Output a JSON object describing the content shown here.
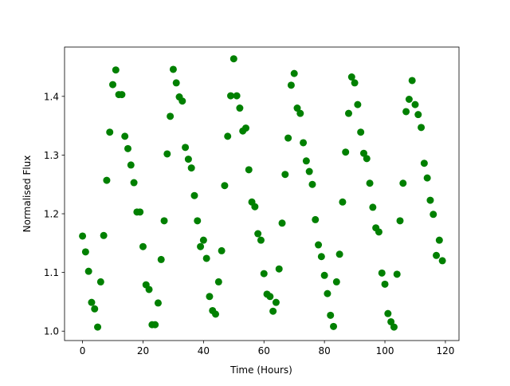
{
  "chart_data": {
    "type": "scatter",
    "xlabel": "Time (Hours)",
    "ylabel": "Normalised Flux",
    "color": "#008000",
    "x": [
      0,
      1,
      2,
      3,
      4,
      5,
      6,
      7,
      8,
      9,
      10,
      11,
      12,
      13,
      14,
      15,
      16,
      17,
      18,
      19,
      20,
      21,
      22,
      23,
      24,
      25,
      26,
      27,
      28,
      29,
      30,
      31,
      32,
      33,
      34,
      35,
      36,
      37,
      38,
      39,
      40,
      41,
      42,
      43,
      44,
      45,
      46,
      47,
      48,
      49,
      50,
      51,
      52,
      53,
      54,
      55,
      56,
      57,
      58,
      59,
      60,
      61,
      62,
      63,
      64,
      65,
      66,
      67,
      68,
      69,
      70,
      71,
      72,
      73,
      74,
      75,
      76,
      77,
      78,
      79,
      80,
      81,
      82,
      83,
      84,
      85,
      86,
      87,
      88,
      89,
      90,
      91,
      92,
      93,
      94,
      95,
      96,
      97,
      98,
      99,
      100,
      101,
      102,
      103,
      104,
      105,
      106,
      107,
      108,
      109,
      110,
      111,
      112,
      113,
      114,
      115,
      116,
      117,
      118,
      119
    ],
    "values": [
      1.162,
      1.135,
      1.102,
      1.049,
      1.038,
      1.007,
      1.084,
      1.163,
      1.257,
      1.339,
      1.42,
      1.445,
      1.403,
      1.403,
      1.332,
      1.311,
      1.283,
      1.253,
      1.203,
      1.203,
      1.144,
      1.079,
      1.071,
      1.011,
      1.011,
      1.048,
      1.122,
      1.188,
      1.302,
      1.366,
      1.446,
      1.423,
      1.399,
      1.392,
      1.313,
      1.293,
      1.278,
      1.231,
      1.188,
      1.144,
      1.155,
      1.124,
      1.059,
      1.035,
      1.029,
      1.084,
      1.137,
      1.248,
      1.332,
      1.401,
      1.464,
      1.401,
      1.38,
      1.341,
      1.346,
      1.275,
      1.22,
      1.212,
      1.166,
      1.155,
      1.098,
      1.063,
      1.059,
      1.034,
      1.049,
      1.106,
      1.184,
      1.267,
      1.329,
      1.419,
      1.439,
      1.38,
      1.371,
      1.321,
      1.29,
      1.272,
      1.25,
      1.19,
      1.147,
      1.127,
      1.095,
      1.064,
      1.027,
      1.008,
      1.084,
      1.131,
      1.22,
      1.305,
      1.371,
      1.433,
      1.423,
      1.386,
      1.339,
      1.303,
      1.294,
      1.252,
      1.211,
      1.176,
      1.169,
      1.099,
      1.08,
      1.03,
      1.016,
      1.007,
      1.097,
      1.188,
      1.252,
      1.374,
      1.395,
      1.427,
      1.386,
      1.369,
      1.347,
      1.286,
      1.261,
      1.223,
      1.199,
      1.129,
      1.155,
      1.12
    ],
    "xlim": [
      -5.95,
      124.5
    ],
    "ylim": [
      0.984,
      1.484
    ],
    "xticks": [
      0,
      20,
      40,
      60,
      80,
      100,
      120
    ],
    "yticks": [
      {
        "value": 1,
        "label": "1.0"
      },
      1.1,
      1.2,
      1.3,
      1.4
    ]
  }
}
